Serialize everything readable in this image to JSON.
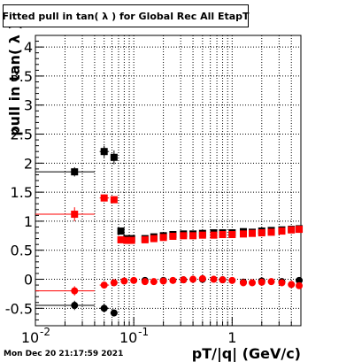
{
  "title": "Fitted pull in tan( λ ) for Global Rec All EtapT",
  "timestamp": "Mon Dec 20 21:17:59 2021",
  "colors": {
    "black_series": "#000000",
    "red_series": "#ff0000",
    "grid": "#000000",
    "background": "#ffffff"
  },
  "chart_data": {
    "type": "scatter",
    "title": "Fitted pull in tan( λ ) for Global Rec All EtapT",
    "xlabel": "pT/|q| (GeV/c)",
    "ylabel": "pull in tan( λ )",
    "xscale": "log",
    "xlim": [
      0.01,
      5.0
    ],
    "ylim": [
      -0.8,
      4.2
    ],
    "grid": true,
    "legend": "none",
    "x_ticks": [
      {
        "value": 0.01,
        "label": "10",
        "exp": "-2"
      },
      {
        "value": 0.1,
        "label": "10",
        "exp": "-1"
      },
      {
        "value": 1,
        "label": "1",
        "exp": ""
      }
    ],
    "y_ticks": [
      {
        "value": -0.5,
        "label": "-0.5"
      },
      {
        "value": 0,
        "label": "0"
      },
      {
        "value": 0.5,
        "label": "0.5"
      },
      {
        "value": 1,
        "label": "1"
      },
      {
        "value": 1.5,
        "label": "1.5"
      },
      {
        "value": 2,
        "label": "2"
      },
      {
        "value": 2.5,
        "label": "2.5"
      },
      {
        "value": 3,
        "label": "3"
      },
      {
        "value": 3.5,
        "label": "3.5"
      },
      {
        "value": 4,
        "label": "4"
      }
    ],
    "series": [
      {
        "color": "#000000",
        "marker": "square",
        "points": [
          {
            "x": 0.025,
            "y": 1.85,
            "xlo": 0.01,
            "xhi": 0.04,
            "yerr": 0.08
          },
          {
            "x": 0.05,
            "y": 2.2,
            "xlo": 0.045,
            "xhi": 0.056,
            "yerr": 0.1
          },
          {
            "x": 0.063,
            "y": 2.1,
            "xlo": 0.058,
            "xhi": 0.068,
            "yerr": 0.12
          },
          {
            "x": 0.074,
            "y": 0.83,
            "xlo": 0.07,
            "xhi": 0.078,
            "yerr": 0.05
          },
          {
            "x": 0.085,
            "y": 0.7
          },
          {
            "x": 0.095,
            "y": 0.7
          },
          {
            "x": 0.13,
            "y": 0.7
          },
          {
            "x": 0.16,
            "y": 0.73
          },
          {
            "x": 0.2,
            "y": 0.75
          },
          {
            "x": 0.25,
            "y": 0.77
          },
          {
            "x": 0.32,
            "y": 0.78
          },
          {
            "x": 0.4,
            "y": 0.78
          },
          {
            "x": 0.5,
            "y": 0.79
          },
          {
            "x": 0.65,
            "y": 0.8
          },
          {
            "x": 0.8,
            "y": 0.8
          },
          {
            "x": 1.0,
            "y": 0.8
          },
          {
            "x": 1.3,
            "y": 0.82
          },
          {
            "x": 1.6,
            "y": 0.81
          },
          {
            "x": 2.0,
            "y": 0.83
          },
          {
            "x": 2.5,
            "y": 0.84
          },
          {
            "x": 3.2,
            "y": 0.85
          },
          {
            "x": 4.0,
            "y": 0.86
          },
          {
            "x": 4.8,
            "y": 0.87
          }
        ]
      },
      {
        "color": "#ff0000",
        "marker": "square",
        "points": [
          {
            "x": 0.025,
            "y": 1.12,
            "xlo": 0.01,
            "xhi": 0.04,
            "yerr": 0.12
          },
          {
            "x": 0.05,
            "y": 1.4,
            "xlo": 0.045,
            "xhi": 0.056,
            "yerr": 0.06
          },
          {
            "x": 0.063,
            "y": 1.37,
            "xlo": 0.058,
            "xhi": 0.068,
            "yerr": 0.06
          },
          {
            "x": 0.074,
            "y": 0.68
          },
          {
            "x": 0.085,
            "y": 0.67
          },
          {
            "x": 0.095,
            "y": 0.67
          },
          {
            "x": 0.13,
            "y": 0.68
          },
          {
            "x": 0.16,
            "y": 0.7
          },
          {
            "x": 0.2,
            "y": 0.72
          },
          {
            "x": 0.25,
            "y": 0.74
          },
          {
            "x": 0.32,
            "y": 0.75
          },
          {
            "x": 0.4,
            "y": 0.75
          },
          {
            "x": 0.5,
            "y": 0.76
          },
          {
            "x": 0.65,
            "y": 0.76
          },
          {
            "x": 0.8,
            "y": 0.77
          },
          {
            "x": 1.0,
            "y": 0.77
          },
          {
            "x": 1.3,
            "y": 0.78
          },
          {
            "x": 1.6,
            "y": 0.79
          },
          {
            "x": 2.0,
            "y": 0.8
          },
          {
            "x": 2.5,
            "y": 0.81
          },
          {
            "x": 3.2,
            "y": 0.83
          },
          {
            "x": 4.0,
            "y": 0.85
          },
          {
            "x": 4.8,
            "y": 0.86
          }
        ]
      },
      {
        "color": "#000000",
        "marker": "circle",
        "points": [
          {
            "x": 0.025,
            "y": -0.45,
            "xlo": 0.01,
            "xhi": 0.04,
            "yerr": 0.08
          },
          {
            "x": 0.05,
            "y": -0.5,
            "xlo": 0.045,
            "xhi": 0.056,
            "yerr": 0.07
          },
          {
            "x": 0.063,
            "y": -0.58,
            "xlo": 0.058,
            "xhi": 0.068,
            "yerr": 0.06
          },
          {
            "x": 0.13,
            "y": -0.02
          },
          {
            "x": 0.2,
            "y": -0.02
          },
          {
            "x": 0.32,
            "y": -0.01
          },
          {
            "x": 0.5,
            "y": 0.0
          },
          {
            "x": 0.8,
            "y": -0.01
          },
          {
            "x": 1.3,
            "y": -0.05
          },
          {
            "x": 2.0,
            "y": -0.03
          },
          {
            "x": 3.2,
            "y": -0.04
          },
          {
            "x": 4.8,
            "y": -0.02
          }
        ]
      },
      {
        "color": "#ff0000",
        "marker": "circle",
        "points": [
          {
            "x": 0.025,
            "y": -0.2,
            "xlo": 0.01,
            "xhi": 0.04,
            "yerr": 0.08
          },
          {
            "x": 0.05,
            "y": -0.1,
            "xlo": 0.045,
            "xhi": 0.056,
            "yerr": 0.05
          },
          {
            "x": 0.063,
            "y": -0.06,
            "xlo": 0.058,
            "xhi": 0.068,
            "yerr": 0.04
          },
          {
            "x": 0.08,
            "y": -0.03
          },
          {
            "x": 0.1,
            "y": -0.02
          },
          {
            "x": 0.13,
            "y": -0.04
          },
          {
            "x": 0.16,
            "y": -0.04
          },
          {
            "x": 0.2,
            "y": -0.03
          },
          {
            "x": 0.25,
            "y": -0.02
          },
          {
            "x": 0.32,
            "y": -0.01
          },
          {
            "x": 0.4,
            "y": 0.0
          },
          {
            "x": 0.5,
            "y": 0.01
          },
          {
            "x": 0.65,
            "y": 0.0
          },
          {
            "x": 0.8,
            "y": -0.01
          },
          {
            "x": 1.0,
            "y": -0.02
          },
          {
            "x": 1.3,
            "y": -0.06
          },
          {
            "x": 1.6,
            "y": -0.06
          },
          {
            "x": 2.0,
            "y": -0.05
          },
          {
            "x": 2.5,
            "y": -0.04
          },
          {
            "x": 3.2,
            "y": -0.06
          },
          {
            "x": 4.0,
            "y": -0.09
          },
          {
            "x": 4.8,
            "y": -0.11
          }
        ]
      }
    ]
  }
}
